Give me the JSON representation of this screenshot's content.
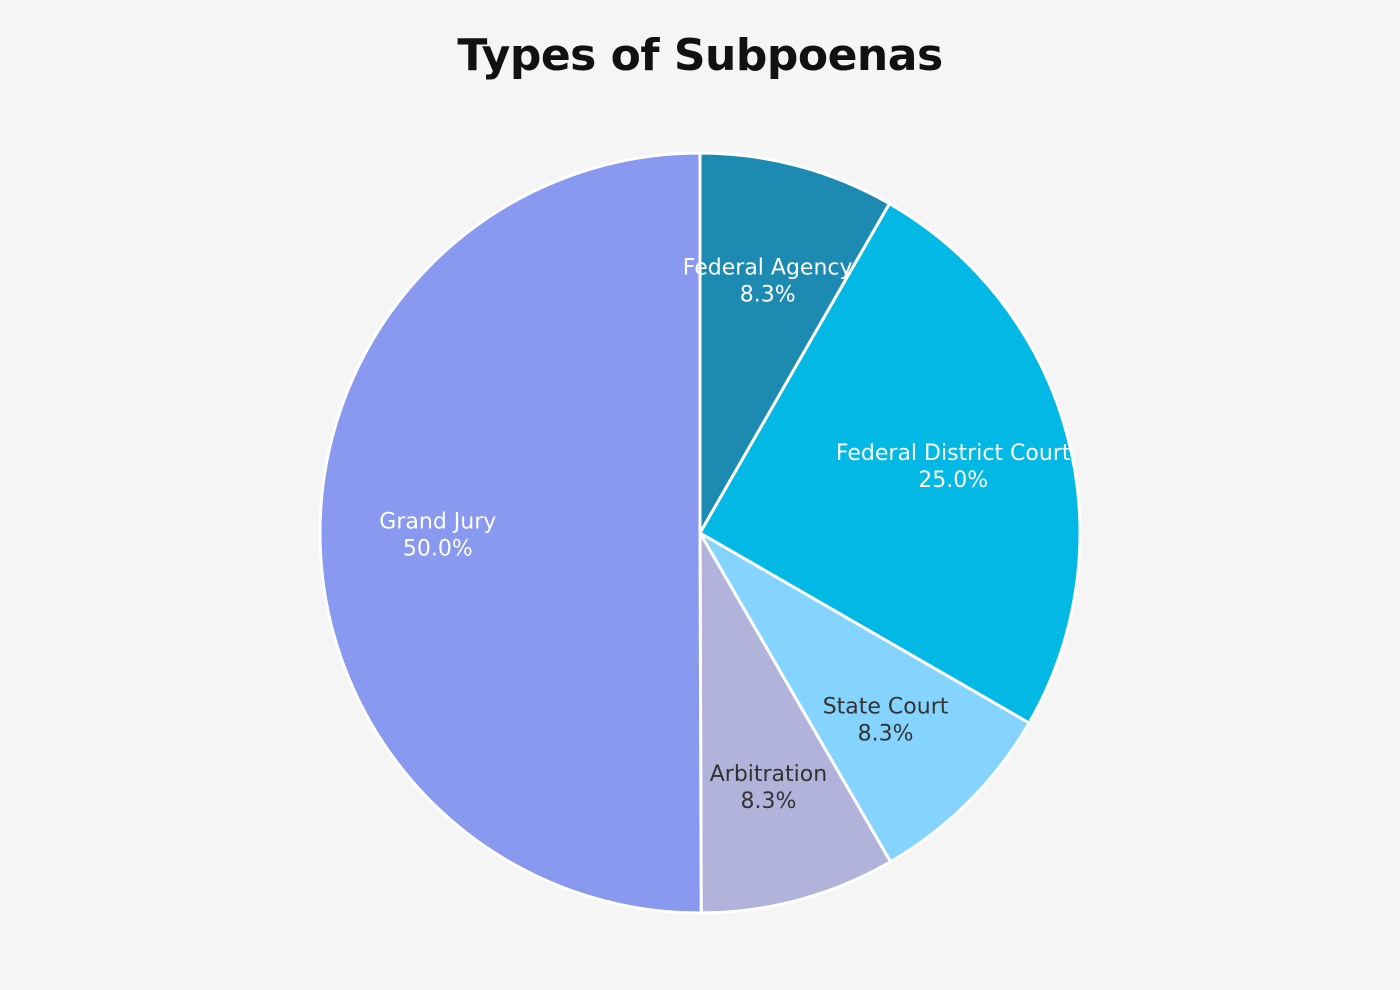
{
  "chart_data": {
    "type": "pie",
    "title": "Types of Subpoenas",
    "start_angle_deg": 0,
    "direction": "clockwise",
    "legend": "none",
    "slices": [
      {
        "label": "Federal Agency",
        "value": 8.3,
        "value_label": "8.3%",
        "color": "#1d8ab2",
        "label_color": "#ffffff"
      },
      {
        "label": "Federal District Court",
        "value": 25.0,
        "value_label": "25.0%",
        "color": "#02b8e4",
        "label_color": "#ffffff"
      },
      {
        "label": "State Court",
        "value": 8.3,
        "value_label": "8.3%",
        "color": "#84d4ff",
        "label_color": "#333333"
      },
      {
        "label": "Arbitration",
        "value": 8.3,
        "value_label": "8.3%",
        "color": "#b2b3da",
        "label_color": "#333333"
      },
      {
        "label": "Grand Jury",
        "value": 50.0,
        "value_label": "50.0%",
        "color": "#8899ef",
        "label_color": "#ffffff"
      }
    ]
  }
}
